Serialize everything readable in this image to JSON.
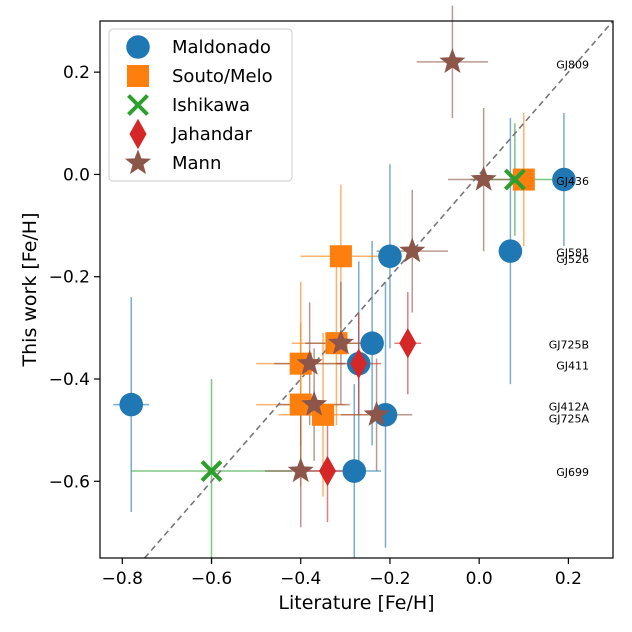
{
  "chart_data": {
    "type": "scatter",
    "title": "",
    "xlabel": "Literature [Fe/H]",
    "ylabel": "This work [Fe/H]",
    "xlim": [
      -0.85,
      0.3
    ],
    "ylim": [
      -0.75,
      0.3
    ],
    "xticks": [
      -0.8,
      -0.6,
      -0.4,
      -0.2,
      0.0,
      0.2
    ],
    "xtick_labels": [
      "−0.8",
      "−0.6",
      "−0.4",
      "−0.2",
      "0.0",
      "0.2"
    ],
    "yticks": [
      -0.6,
      -0.4,
      -0.2,
      0.0,
      0.2
    ],
    "ytick_labels": [
      "−0.6",
      "−0.4",
      "−0.2",
      "0.0",
      "0.2"
    ],
    "identity_line": true,
    "grid": false,
    "legend_location": "upper-left",
    "series": [
      {
        "name": "Maldonado",
        "marker": "circle",
        "color": "#1f77b4",
        "points": [
          {
            "x": 0.19,
            "y": -0.01,
            "xerr": 0.0,
            "yerr": 0.13
          },
          {
            "x": 0.07,
            "y": -0.15,
            "xerr": 0.02,
            "yerr": 0.26
          },
          {
            "x": -0.2,
            "y": -0.16,
            "xerr": 0.0,
            "yerr": 0.18
          },
          {
            "x": -0.24,
            "y": -0.33,
            "xerr": 0.0,
            "yerr": 0.2
          },
          {
            "x": -0.27,
            "y": -0.37,
            "xerr": 0.0,
            "yerr": 0.2
          },
          {
            "x": -0.21,
            "y": -0.47,
            "xerr": 0.02,
            "yerr": 0.26
          },
          {
            "x": -0.78,
            "y": -0.45,
            "xerr": 0.04,
            "yerr": 0.21
          },
          {
            "x": -0.28,
            "y": -0.58,
            "xerr": 0.06,
            "yerr": 0.17
          }
        ]
      },
      {
        "name": "Souto/Melo",
        "marker": "square",
        "color": "#ff7f0e",
        "points": [
          {
            "x": 0.1,
            "y": -0.01,
            "xerr": 0.0,
            "yerr": 0.13
          },
          {
            "x": -0.31,
            "y": -0.16,
            "xerr": 0.09,
            "yerr": 0.14
          },
          {
            "x": -0.32,
            "y": -0.33,
            "xerr": 0.1,
            "yerr": 0.16
          },
          {
            "x": -0.4,
            "y": -0.37,
            "xerr": 0.1,
            "yerr": 0.16
          },
          {
            "x": -0.4,
            "y": -0.45,
            "xerr": 0.1,
            "yerr": 0.16
          },
          {
            "x": -0.35,
            "y": -0.47,
            "xerr": 0.1,
            "yerr": 0.16
          }
        ]
      },
      {
        "name": "Ishikawa",
        "marker": "x",
        "color": "#2ca02c",
        "points": [
          {
            "x": 0.08,
            "y": -0.01,
            "xerr": 0.1,
            "yerr": 0.11
          },
          {
            "x": -0.6,
            "y": -0.58,
            "xerr": 0.18,
            "yerr": 0.18
          }
        ]
      },
      {
        "name": "Jahandar",
        "marker": "diamond",
        "color": "#d62728",
        "points": [
          {
            "x": -0.16,
            "y": -0.33,
            "xerr": 0.03,
            "yerr": 0.1
          },
          {
            "x": -0.27,
            "y": -0.37,
            "xerr": 0.05,
            "yerr": 0.1
          },
          {
            "x": -0.34,
            "y": -0.58,
            "xerr": 0.05,
            "yerr": 0.1
          }
        ]
      },
      {
        "name": "Mann",
        "marker": "star",
        "color": "#8c564b",
        "points": [
          {
            "x": -0.06,
            "y": 0.22,
            "xerr": 0.08,
            "yerr": 0.11
          },
          {
            "x": 0.01,
            "y": -0.01,
            "xerr": 0.08,
            "yerr": 0.14
          },
          {
            "x": -0.15,
            "y": -0.15,
            "xerr": 0.08,
            "yerr": 0.12
          },
          {
            "x": -0.31,
            "y": -0.33,
            "xerr": 0.08,
            "yerr": 0.12
          },
          {
            "x": -0.38,
            "y": -0.37,
            "xerr": 0.08,
            "yerr": 0.12
          },
          {
            "x": -0.37,
            "y": -0.45,
            "xerr": 0.08,
            "yerr": 0.11
          },
          {
            "x": -0.23,
            "y": -0.47,
            "xerr": 0.08,
            "yerr": 0.11
          },
          {
            "x": -0.4,
            "y": -0.58,
            "xerr": 0.08,
            "yerr": 0.11
          }
        ]
      }
    ],
    "star_labels": [
      {
        "text": "GJ809",
        "y": 0.215
      },
      {
        "text": "GJ436",
        "y": -0.013
      },
      {
        "text": "GJ581",
        "y": -0.153
      },
      {
        "text": "GJ526",
        "y": -0.165
      },
      {
        "text": "GJ725B",
        "y": -0.333
      },
      {
        "text": "GJ411",
        "y": -0.374
      },
      {
        "text": "GJ412A",
        "y": -0.454
      },
      {
        "text": "GJ725A",
        "y": -0.477
      },
      {
        "text": "GJ699",
        "y": -0.582
      }
    ]
  }
}
